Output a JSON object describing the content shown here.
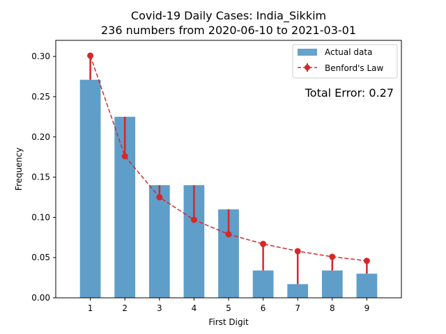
{
  "chart_data": {
    "type": "bar",
    "title": "Covid-19 Daily Cases: India_Sikkim",
    "subtitle": "236 numbers from 2020-06-10 to 2021-03-01",
    "xlabel": "First Digit",
    "ylabel": "Frequency",
    "categories": [
      "1",
      "2",
      "3",
      "4",
      "5",
      "6",
      "7",
      "8",
      "9"
    ],
    "ylim": [
      0,
      0.32
    ],
    "yticks": [
      0.0,
      0.05,
      0.1,
      0.15,
      0.2,
      0.25,
      0.3
    ],
    "ytick_labels": [
      "0.00",
      "0.05",
      "0.10",
      "0.15",
      "0.20",
      "0.25",
      "0.30"
    ],
    "series": [
      {
        "name": "Actual data",
        "kind": "bar",
        "color": "#5f9ec9",
        "values": [
          0.271,
          0.225,
          0.14,
          0.14,
          0.11,
          0.034,
          0.017,
          0.034,
          0.03
        ]
      },
      {
        "name": "Benford's Law",
        "kind": "line",
        "color": "#d62728",
        "values": [
          0.301,
          0.176,
          0.125,
          0.097,
          0.079,
          0.067,
          0.058,
          0.051,
          0.046
        ]
      }
    ],
    "annotation": "Total Error: 0.27",
    "annotation_color": "#d62728",
    "legend_position": "top-right",
    "grid": false
  }
}
